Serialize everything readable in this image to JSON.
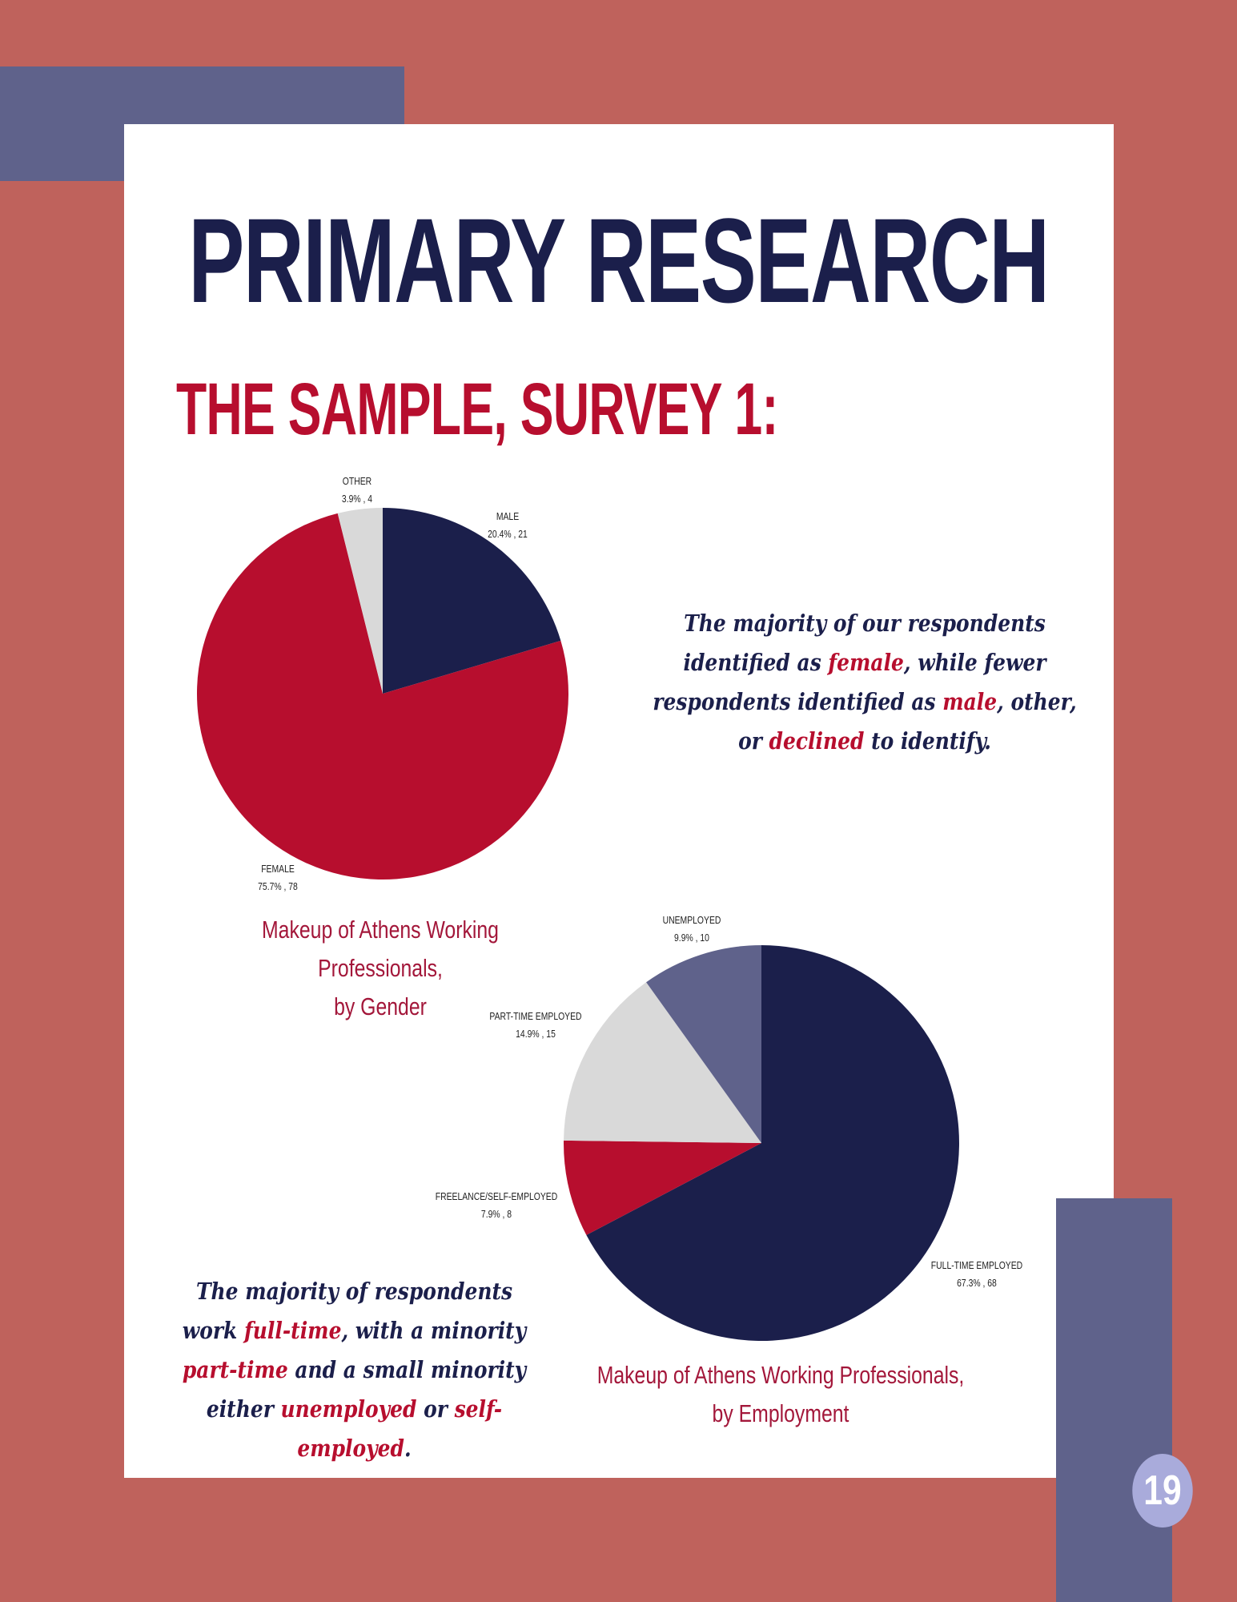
{
  "page": {
    "title": "PRIMARY RESEARCH",
    "subtitle": "THE SAMPLE, SURVEY 1:",
    "page_number": "19"
  },
  "notes": {
    "gender": {
      "p1": "The majority of our respondents identified as ",
      "h1": "female",
      "p2": ", while fewer respondents identified as ",
      "h2": "male",
      "p3": ", other, or ",
      "h3": "declined",
      "p4": " to identify."
    },
    "employment": {
      "p1": "The majority of respondents work ",
      "h1": "full-time",
      "p2": ", with a minority ",
      "h2": "part-time",
      "p3": " and a small minority either ",
      "h3": "unemployed",
      "p4": " or ",
      "h4": "self-employed",
      "p5": "."
    }
  },
  "colors": {
    "navy": "#1b1f4b",
    "red": "#b70e2e",
    "light_gray": "#d9d9d9",
    "slate": "#5f628b",
    "background": "#bf625c"
  },
  "chart_data": [
    {
      "type": "pie",
      "caption_line1": "Makeup of Athens Working Professionals,",
      "caption_line2": "by Gender",
      "slices": [
        {
          "name": "MALE",
          "percent": 20.4,
          "count": 21,
          "label": "20.4% , 21",
          "color": "#1b1f4b"
        },
        {
          "name": "FEMALE",
          "percent": 75.7,
          "count": 78,
          "label": "75.7% , 78",
          "color": "#b70e2e"
        },
        {
          "name": "OTHER",
          "percent": 3.9,
          "count": 4,
          "label": "3.9% , 4",
          "color": "#d9d9d9"
        }
      ]
    },
    {
      "type": "pie",
      "caption_line1": "Makeup of Athens Working Professionals,",
      "caption_line2": "by Employment",
      "slices": [
        {
          "name": "FULL-TIME EMPLOYED",
          "percent": 67.3,
          "count": 68,
          "label": "67.3% , 68",
          "color": "#1b1f4b"
        },
        {
          "name": "FREELANCE/SELF-EMPLOYED",
          "percent": 7.9,
          "count": 8,
          "label": "7.9% , 8",
          "color": "#b70e2e"
        },
        {
          "name": "PART-TIME EMPLOYED",
          "percent": 14.9,
          "count": 15,
          "label": "14.9% , 15",
          "color": "#d9d9d9"
        },
        {
          "name": "UNEMPLOYED",
          "percent": 9.9,
          "count": 10,
          "label": "9.9% , 10",
          "color": "#5f628b"
        }
      ]
    }
  ]
}
